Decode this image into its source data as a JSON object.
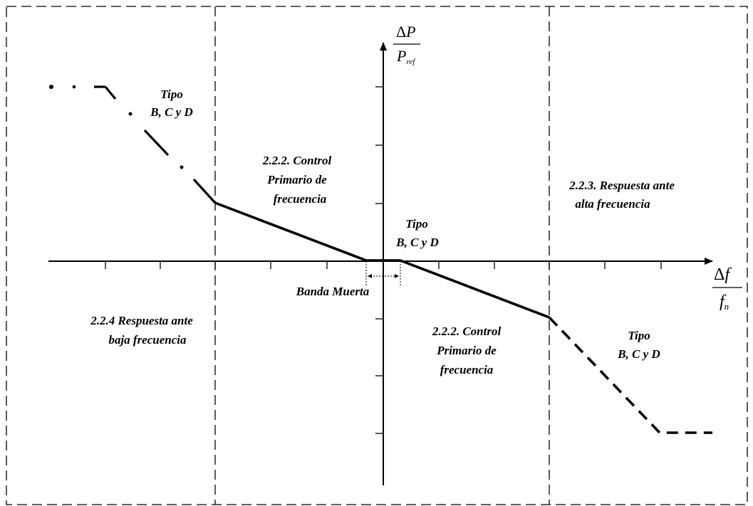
{
  "y_axis": {
    "numerator_delta": "Δ",
    "numerator_var": "P",
    "denominator_var": "P",
    "denominator_sub": "ref"
  },
  "x_axis": {
    "numerator_delta": "Δ",
    "numerator_var": "f",
    "denominator_var": "f",
    "denominator_sub": "n"
  },
  "regions": {
    "left_top_tipo": [
      "Tipo",
      "B, C y D"
    ],
    "control_upper": [
      "2.2.2. Control",
      "Primario de",
      "frecuencia"
    ],
    "center_tipo": [
      "Tipo",
      "B, C y D"
    ],
    "high_freq": [
      "2.2.3. Respuesta ante",
      "alta frecuencia"
    ],
    "dead_band": "Banda Muerta",
    "low_freq": [
      "2.2.4 Respuesta ante",
      "baja frecuencia"
    ],
    "control_lower": [
      "2.2.2. Control",
      "Primario de",
      "frecuencia"
    ],
    "right_bottom_tipo": [
      "Tipo",
      "B, C y D"
    ]
  },
  "colors": {
    "line": "#000000",
    "background": "#ffffff"
  }
}
